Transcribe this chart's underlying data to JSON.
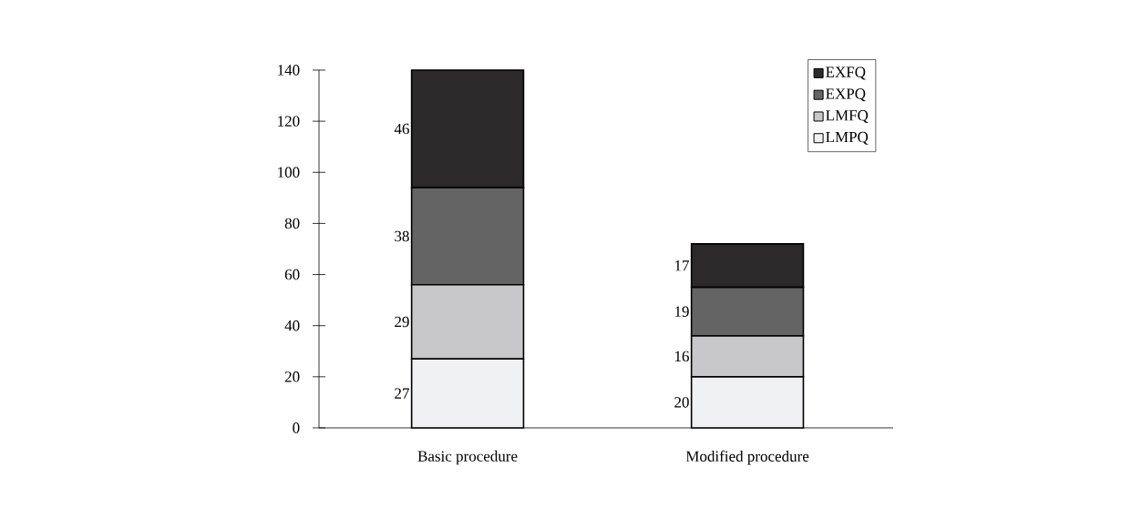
{
  "chart_data": {
    "type": "bar",
    "stacked": true,
    "categories": [
      "Basic  procedure",
      "Modified procedure"
    ],
    "series": [
      {
        "name": "LMPQ",
        "color": "#f0f1f3",
        "values": [
          27,
          20
        ]
      },
      {
        "name": "LMFQ",
        "color": "#c8c8ca",
        "values": [
          29,
          16
        ]
      },
      {
        "name": "EXPQ",
        "color": "#646464",
        "values": [
          38,
          19
        ]
      },
      {
        "name": "EXFQ",
        "color": "#2b292a",
        "values": [
          46,
          17
        ]
      }
    ],
    "ylim": [
      0,
      140
    ],
    "yticks": [
      0,
      20,
      40,
      60,
      80,
      100,
      120,
      140
    ],
    "data_labels": true,
    "legend": "top right",
    "grid": false
  }
}
